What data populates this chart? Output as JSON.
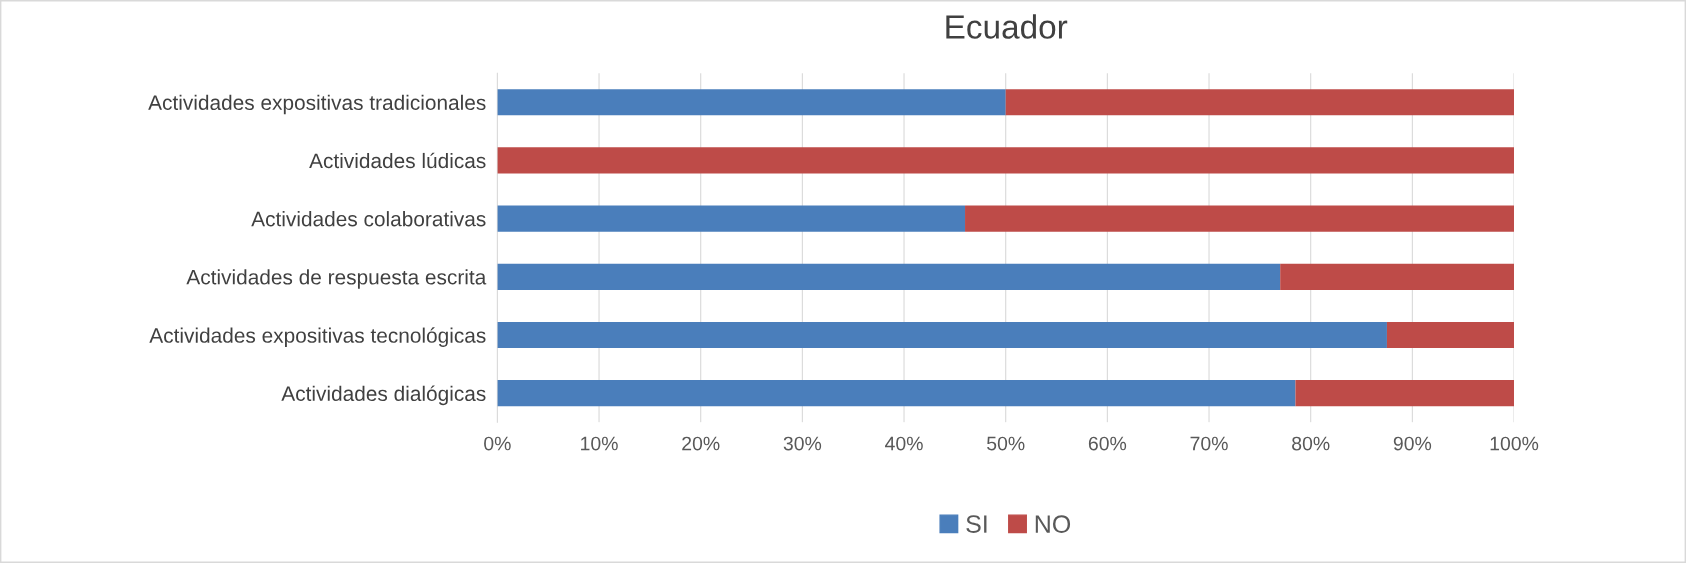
{
  "chart_data": {
    "type": "bar",
    "orientation": "horizontal",
    "stacked": true,
    "title": "Ecuador",
    "categories": [
      "Actividades expositivas tradicionales",
      "Actividades lúdicas",
      "Actividades colaborativas",
      "Actividades de respuesta escrita",
      "Actividades expositivas tecnológicas",
      "Actividades dialógicas"
    ],
    "series": [
      {
        "name": "SI",
        "color": "#4a7ebb",
        "values": [
          50,
          0,
          46,
          77,
          87.5,
          78.5
        ]
      },
      {
        "name": "NO",
        "color": "#be4b48",
        "values": [
          50,
          100,
          54,
          23,
          12.5,
          21.5
        ]
      }
    ],
    "xlim": [
      0,
      100
    ],
    "xticks": [
      {
        "value": 0,
        "label": "0%"
      },
      {
        "value": 10,
        "label": "10%"
      },
      {
        "value": 20,
        "label": "20%"
      },
      {
        "value": 30,
        "label": "30%"
      },
      {
        "value": 40,
        "label": "40%"
      },
      {
        "value": 50,
        "label": "50%"
      },
      {
        "value": 60,
        "label": "60%"
      },
      {
        "value": 70,
        "label": "70%"
      },
      {
        "value": 80,
        "label": "80%"
      },
      {
        "value": 90,
        "label": "90%"
      },
      {
        "value": 100,
        "label": "100%"
      }
    ],
    "grid": "x",
    "legend": "bottom"
  }
}
